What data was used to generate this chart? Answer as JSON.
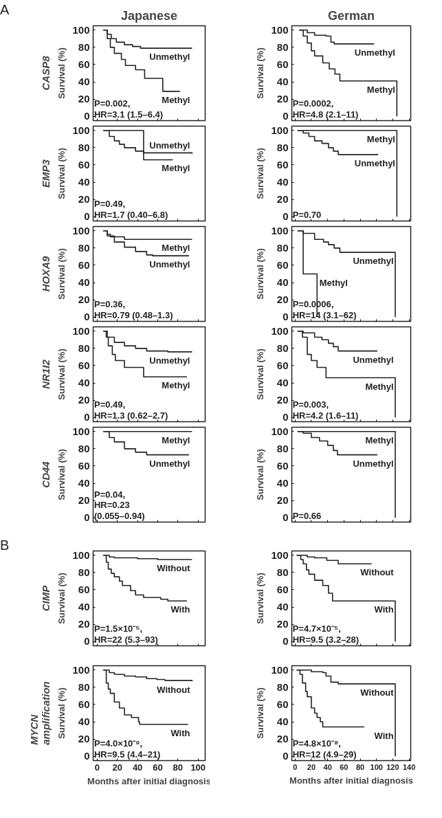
{
  "chart_data": [
    {
      "type": "step",
      "title": "Japanese",
      "ylabel": "Survival (%)",
      "xlim": [
        -4,
        107
      ],
      "ylim": [
        -5,
        105
      ],
      "xticks": [
        0,
        20,
        40,
        60,
        80,
        100
      ],
      "yticks": [
        0,
        20,
        40,
        60,
        80,
        100
      ],
      "tick_labels": "y",
      "annotations": [
        "A",
        "CASP8",
        "P=0.002,\nHR=3.1 (1.5–6.4)"
      ],
      "series": [
        {
          "name": "Unmethyl",
          "color": "#222222",
          "x": [
            6,
            10,
            14,
            19,
            27,
            35,
            43,
            94
          ],
          "values": [
            100,
            95,
            90,
            86,
            83,
            81,
            79,
            79
          ]
        },
        {
          "name": "Methyl",
          "color": "#222222",
          "x": [
            6,
            10,
            13,
            17,
            24,
            28,
            38,
            47,
            65,
            82
          ],
          "values": [
            100,
            90,
            80,
            73,
            66,
            59,
            54,
            44,
            29,
            29
          ]
        }
      ]
    },
    {
      "type": "step",
      "title": "German",
      "ylabel": "Survival (%)",
      "xlim": [
        -4,
        142
      ],
      "ylim": [
        -5,
        105
      ],
      "xticks": [
        0,
        20,
        40,
        60,
        80,
        100,
        120,
        140
      ],
      "yticks": [
        0,
        20,
        40,
        60,
        80,
        100
      ],
      "tick_labels": "y",
      "annotations": [
        "P=0.0002,\nHR=4.8 (2.1–11)"
      ],
      "series": [
        {
          "name": "Unmethyl",
          "color": "#222222",
          "x": [
            5,
            15,
            24,
            38,
            44,
            48,
            97
          ],
          "values": [
            100,
            97,
            94,
            93,
            86,
            84,
            84
          ]
        },
        {
          "name": "Methyl",
          "color": "#222222",
          "x": [
            5,
            10,
            15,
            20,
            24,
            34,
            42,
            49,
            55,
            125,
            125
          ],
          "values": [
            100,
            93,
            85,
            76,
            70,
            62,
            55,
            49,
            41,
            41,
            0
          ]
        }
      ]
    },
    {
      "type": "step",
      "ylabel": "Survival (%)",
      "xlim": [
        -4,
        107
      ],
      "ylim": [
        -5,
        105
      ],
      "xticks": [
        0,
        20,
        40,
        60,
        80,
        100
      ],
      "yticks": [
        0,
        20,
        40,
        60,
        80,
        100
      ],
      "tick_labels": "y",
      "annotations": [
        "EMP3",
        "P=0.49,\nHR=1.7 (0.40–6.8)"
      ],
      "series": [
        {
          "name": "Unmethyl",
          "color": "#222222",
          "x": [
            6,
            12,
            17,
            22,
            27,
            38,
            46,
            94
          ],
          "values": [
            100,
            93,
            88,
            84,
            80,
            76,
            74,
            73
          ]
        },
        {
          "name": "Methyl",
          "color": "#222222",
          "x": [
            6,
            46,
            75
          ],
          "values": [
            100,
            66,
            66
          ]
        }
      ]
    },
    {
      "type": "step",
      "ylabel": "Survival (%)",
      "xlim": [
        -4,
        142
      ],
      "ylim": [
        -5,
        105
      ],
      "xticks": [
        0,
        20,
        40,
        60,
        80,
        100,
        120,
        140
      ],
      "yticks": [
        0,
        20,
        40,
        60,
        80,
        100
      ],
      "tick_labels": "y",
      "annotations": [
        "P=0.70"
      ],
      "series": [
        {
          "name": "Methyl",
          "color": "#222222",
          "x": [
            3,
            125,
            125
          ],
          "values": [
            100,
            100,
            0
          ]
        },
        {
          "name": "Unmethyl",
          "color": "#222222",
          "x": [
            3,
            10,
            17,
            24,
            33,
            41,
            47,
            53,
            102
          ],
          "values": [
            100,
            97,
            93,
            88,
            85,
            80,
            76,
            72,
            72
          ]
        }
      ]
    },
    {
      "type": "step",
      "ylabel": "Survival (%)",
      "xlim": [
        -4,
        107
      ],
      "ylim": [
        -5,
        105
      ],
      "xticks": [
        0,
        20,
        40,
        60,
        80,
        100
      ],
      "yticks": [
        0,
        20,
        40,
        60,
        80,
        100
      ],
      "tick_labels": "y",
      "annotations": [
        "HOXA9",
        "P=0.36,\nHR=0.79 (0.48–1.3)"
      ],
      "series": [
        {
          "name": "Methyl",
          "color": "#222222",
          "x": [
            6,
            10,
            13,
            27,
            94
          ],
          "values": [
            100,
            96,
            93,
            90,
            90
          ]
        },
        {
          "name": "Unmethyl",
          "color": "#222222",
          "x": [
            6,
            10,
            17,
            27,
            38,
            49,
            55,
            91
          ],
          "values": [
            100,
            94,
            87,
            81,
            76,
            72,
            71,
            71
          ]
        }
      ]
    },
    {
      "type": "step",
      "ylabel": "Survival (%)",
      "xlim": [
        -4,
        142
      ],
      "ylim": [
        -5,
        105
      ],
      "xticks": [
        0,
        20,
        40,
        60,
        80,
        100,
        120,
        140
      ],
      "yticks": [
        0,
        20,
        40,
        60,
        80,
        100
      ],
      "tick_labels": "y",
      "annotations": [
        "P=0.0006,\nHR=14 (3.1–62)"
      ],
      "series": [
        {
          "name": "Unmethyl",
          "color": "#222222",
          "x": [
            3,
            10,
            24,
            35,
            41,
            48,
            55,
            123,
            123
          ],
          "values": [
            100,
            97,
            90,
            87,
            84,
            80,
            75,
            75,
            0
          ]
        },
        {
          "name": "Methyl",
          "color": "#222222",
          "x": [
            3,
            10,
            27,
            27
          ],
          "values": [
            100,
            50,
            50,
            0
          ]
        }
      ]
    },
    {
      "type": "step",
      "ylabel": "Survival (%)",
      "xlim": [
        -4,
        107
      ],
      "ylim": [
        -5,
        105
      ],
      "xticks": [
        0,
        20,
        40,
        60,
        80,
        100
      ],
      "yticks": [
        0,
        20,
        40,
        60,
        80,
        100
      ],
      "tick_labels": "y",
      "annotations": [
        "NR1I2",
        "P=0.49,\nHR=1.3 (0.62–2.7)"
      ],
      "series": [
        {
          "name": "Unmethyl",
          "color": "#222222",
          "x": [
            6,
            10,
            17,
            27,
            38,
            49,
            70,
            94
          ],
          "values": [
            100,
            93,
            87,
            83,
            80,
            77,
            76,
            76
          ]
        },
        {
          "name": "Methyl",
          "color": "#222222",
          "x": [
            6,
            9,
            11,
            15,
            18,
            27,
            46,
            89
          ],
          "values": [
            100,
            93,
            83,
            73,
            66,
            58,
            47,
            47
          ]
        }
      ]
    },
    {
      "type": "step",
      "ylabel": "Survival (%)",
      "xlim": [
        -4,
        142
      ],
      "ylim": [
        -5,
        105
      ],
      "xticks": [
        0,
        20,
        40,
        60,
        80,
        100,
        120,
        140
      ],
      "yticks": [
        0,
        20,
        40,
        60,
        80,
        100
      ],
      "tick_labels": "y",
      "annotations": [
        "P=0.003,\nHR=4.2 (1.6–11)"
      ],
      "series": [
        {
          "name": "Unmethyl",
          "color": "#222222",
          "x": [
            3,
            10,
            24,
            33,
            41,
            47,
            53,
            101
          ],
          "values": [
            100,
            98,
            93,
            90,
            86,
            82,
            77,
            77
          ]
        },
        {
          "name": "Methyl",
          "color": "#222222",
          "x": [
            3,
            9,
            15,
            20,
            27,
            38,
            123,
            123
          ],
          "values": [
            100,
            93,
            73,
            66,
            58,
            46,
            46,
            0
          ]
        }
      ]
    },
    {
      "type": "step",
      "ylabel": "Survival (%)",
      "xlim": [
        -4,
        107
      ],
      "ylim": [
        -5,
        105
      ],
      "xticks": [
        0,
        20,
        40,
        60,
        80,
        100
      ],
      "yticks": [
        0,
        20,
        40,
        60,
        80,
        100
      ],
      "tick_labels": "y",
      "annotations": [
        "CD44",
        "P=0.04,\nHR=0.23\n(0.055–0.94)"
      ],
      "series": [
        {
          "name": "Methyl",
          "color": "#222222",
          "x": [
            6,
            94
          ],
          "values": [
            100,
            100
          ]
        },
        {
          "name": "Unmethyl",
          "color": "#222222",
          "x": [
            6,
            12,
            17,
            27,
            38,
            49,
            91
          ],
          "values": [
            100,
            93,
            88,
            80,
            76,
            73,
            73
          ]
        }
      ]
    },
    {
      "type": "step",
      "ylabel": "Survival (%)",
      "xlim": [
        -4,
        142
      ],
      "ylim": [
        -5,
        105
      ],
      "xticks": [
        0,
        20,
        40,
        60,
        80,
        100,
        120,
        140
      ],
      "yticks": [
        0,
        20,
        40,
        60,
        80,
        100
      ],
      "tick_labels": "y",
      "annotations": [
        "P=0.66"
      ],
      "series": [
        {
          "name": "Methyl",
          "color": "#222222",
          "x": [
            3,
            123,
            123
          ],
          "values": [
            100,
            100,
            0
          ]
        },
        {
          "name": "Unmethyl",
          "color": "#222222",
          "x": [
            3,
            10,
            20,
            30,
            40,
            47,
            52,
            101
          ],
          "values": [
            100,
            98,
            93,
            89,
            84,
            78,
            73,
            73
          ]
        }
      ]
    },
    {
      "type": "step",
      "ylabel": "Survival (%)",
      "xlim": [
        -4,
        107
      ],
      "ylim": [
        -5,
        105
      ],
      "xticks": [
        0,
        20,
        40,
        60,
        80,
        100
      ],
      "yticks": [
        0,
        20,
        40,
        60,
        80,
        100
      ],
      "tick_labels": "y",
      "annotations": [
        "B",
        "CIMP",
        "P=1.5×10⁻⁵,\nHR=22 (5.3–93)"
      ],
      "series": [
        {
          "name": "Without",
          "color": "#222222",
          "x": [
            6,
            12,
            17,
            40,
            60,
            94
          ],
          "values": [
            100,
            98,
            97,
            96,
            95,
            95
          ]
        },
        {
          "name": "With",
          "color": "#222222",
          "x": [
            6,
            9,
            11,
            14,
            17,
            22,
            25,
            33,
            38,
            46,
            63,
            70,
            89
          ],
          "values": [
            100,
            92,
            84,
            79,
            75,
            70,
            65,
            59,
            54,
            51,
            49,
            47,
            47
          ]
        }
      ]
    },
    {
      "type": "step",
      "ylabel": "Survival (%)",
      "xlim": [
        -4,
        142
      ],
      "ylim": [
        -5,
        105
      ],
      "xticks": [
        0,
        20,
        40,
        60,
        80,
        100,
        120,
        140
      ],
      "yticks": [
        0,
        20,
        40,
        60,
        80,
        100
      ],
      "tick_labels": "y",
      "annotations": [
        "P=4.7×10⁻⁵,\nHR=9.5 (3.2–28)"
      ],
      "series": [
        {
          "name": "Without",
          "color": "#222222",
          "x": [
            2,
            15,
            24,
            39,
            53,
            94
          ],
          "values": [
            100,
            98,
            97,
            94,
            90,
            90
          ]
        },
        {
          "name": "With",
          "color": "#222222",
          "x": [
            2,
            7,
            10,
            14,
            17,
            24,
            34,
            41,
            46,
            123,
            123
          ],
          "values": [
            100,
            95,
            90,
            83,
            78,
            71,
            65,
            56,
            47,
            47,
            0
          ]
        }
      ]
    },
    {
      "type": "step",
      "ylabel": "Survival (%)",
      "xlabel": "Months after initial diagnosis",
      "xlim": [
        -4,
        107
      ],
      "ylim": [
        -5,
        105
      ],
      "xticks": [
        0,
        20,
        40,
        60,
        80,
        100
      ],
      "yticks": [
        0,
        20,
        40,
        60,
        80,
        100
      ],
      "annotations": [
        "MYCN\namplification",
        "P=4.0×10⁻⁹,\nHR=9.5 (4.4–21)"
      ],
      "series": [
        {
          "name": "Without",
          "color": "#222222",
          "x": [
            6,
            12,
            17,
            27,
            38,
            49,
            59,
            67,
            94
          ],
          "values": [
            100,
            97,
            95,
            93,
            92,
            90,
            89,
            88,
            87
          ]
        },
        {
          "name": "With",
          "color": "#222222",
          "x": [
            6,
            9,
            11,
            13,
            17,
            22,
            27,
            34,
            41,
            42,
            90
          ],
          "values": [
            100,
            85,
            78,
            73,
            63,
            56,
            48,
            45,
            40,
            37,
            37
          ]
        }
      ]
    },
    {
      "type": "step",
      "ylabel": "Survival (%)",
      "xlabel": "Months after initial diagnosis",
      "xlim": [
        -4,
        142
      ],
      "ylim": [
        -5,
        105
      ],
      "xticks": [
        0,
        20,
        40,
        60,
        80,
        100,
        120,
        140
      ],
      "yticks": [
        0,
        20,
        40,
        60,
        80,
        100
      ],
      "annotations": [
        "P=4.8×10⁻⁸,\nHR=12 (4.9–29)"
      ],
      "series": [
        {
          "name": "Without",
          "color": "#222222",
          "x": [
            2,
            20,
            34,
            38,
            44,
            53,
            123,
            123
          ],
          "values": [
            100,
            98,
            97,
            93,
            86,
            84,
            84,
            0
          ]
        },
        {
          "name": "With",
          "color": "#222222",
          "x": [
            2,
            6,
            9,
            13,
            15,
            20,
            24,
            27,
            31,
            34,
            85
          ],
          "values": [
            100,
            95,
            85,
            75,
            69,
            56,
            50,
            45,
            40,
            34,
            34
          ]
        }
      ]
    }
  ]
}
